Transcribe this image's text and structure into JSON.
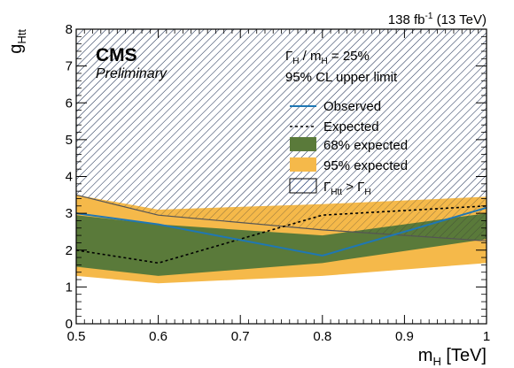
{
  "header": {
    "lumi": "138 fb",
    "lumi_exp": "-1",
    "energy": " (13 TeV)"
  },
  "labels": {
    "cms": "CMS",
    "preliminary": "Preliminary",
    "width_gamma": "Γ",
    "width_sub_h": "H",
    "width_mid": " / m",
    "width_sub_h2": "H",
    "width_value": " = 25%",
    "cl_text": "95% CL upper limit"
  },
  "axes": {
    "x_label": "m",
    "x_label_sub": "H",
    "x_label_unit": " [TeV]",
    "y_label": "g",
    "y_label_sub": "Htt"
  },
  "legend": {
    "observed": "Observed",
    "expected": "Expected",
    "band68": "68% expected",
    "band95": "95% expected",
    "excl_gamma": "Γ",
    "excl_sub": "Htt",
    "excl_mid": " > Γ",
    "excl_sub2": "H"
  },
  "colors": {
    "observed": "#1f77b4",
    "band68": "#5a7a3a",
    "band95": "#f5b94a",
    "hatch": "#1a3a7a"
  },
  "chart_data": {
    "type": "line",
    "xlim": [
      0.5,
      1.0
    ],
    "ylim": [
      0,
      8
    ],
    "x_ticks": [
      "0.5",
      "0.6",
      "0.7",
      "0.8",
      "0.9",
      "1"
    ],
    "y_ticks": [
      "0",
      "1",
      "2",
      "3",
      "4",
      "5",
      "6",
      "7",
      "8"
    ],
    "x": [
      0.5,
      0.6,
      0.8,
      1.0
    ],
    "series": [
      {
        "name": "Observed",
        "values": [
          3.0,
          2.7,
          1.85,
          3.15
        ]
      },
      {
        "name": "Expected",
        "values": [
          2.0,
          1.65,
          2.95,
          3.2
        ]
      }
    ],
    "band68": {
      "name": "68% expected",
      "low": [
        1.55,
        1.3,
        1.65,
        2.3
      ],
      "high": [
        2.95,
        2.7,
        2.4,
        3.0
      ]
    },
    "band95": {
      "name": "95% expected",
      "low": [
        1.3,
        1.1,
        1.3,
        1.65
      ],
      "high": [
        3.5,
        3.1,
        3.25,
        3.45
      ]
    },
    "unphysical_boundary": {
      "name": "Γ_Htt > Γ_H",
      "values": [
        3.5,
        2.95,
        2.55,
        2.25
      ]
    }
  }
}
